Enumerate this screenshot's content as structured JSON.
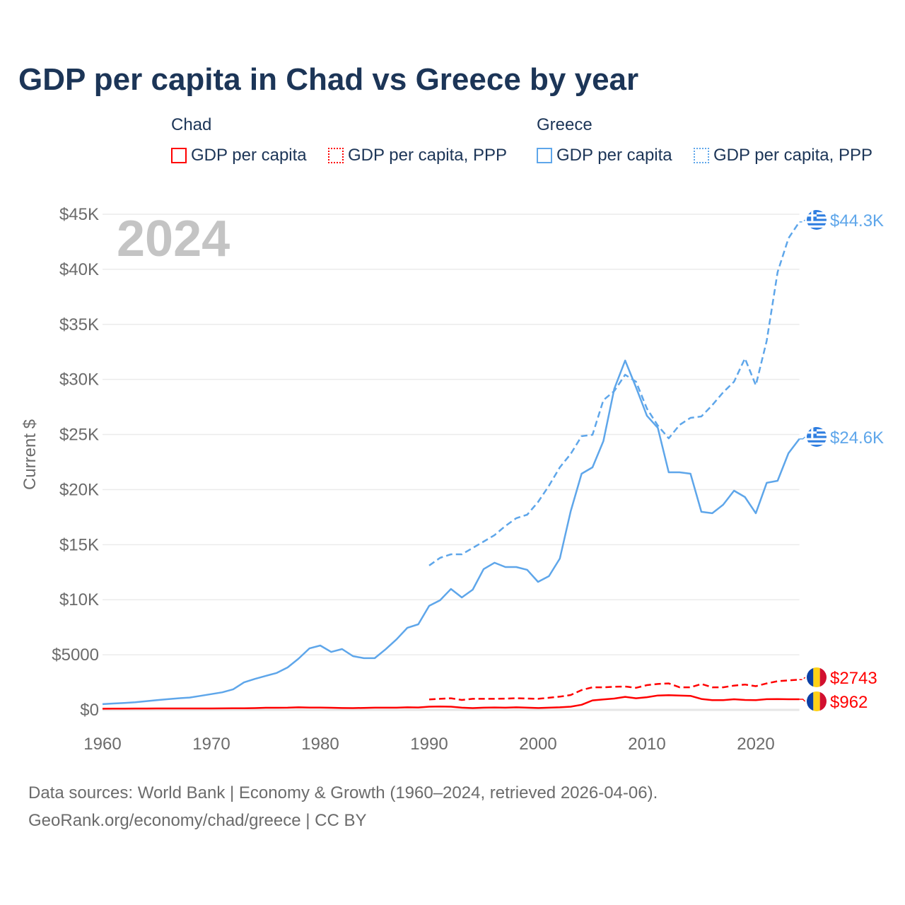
{
  "title": "GDP per capita in Chad vs Greece by year",
  "legend": {
    "groups": [
      {
        "name": "Chad",
        "items": [
          "GDP per capita",
          "GDP per capita, PPP"
        ],
        "color": "#ff0000"
      },
      {
        "name": "Greece",
        "items": [
          "GDP per capita",
          "GDP per capita, PPP"
        ],
        "color": "#5ea6ea"
      }
    ]
  },
  "year_overlay": "2024",
  "end_labels": {
    "greece_ppp": "$44.3K",
    "greece_gdp": "$24.6K",
    "chad_ppp": "$2743",
    "chad_gdp": "$962"
  },
  "footer": {
    "line1": "Data sources: World Bank | Economy & Growth (1960–2024, retrieved 2026-04-06).",
    "line2": "GeoRank.org/economy/chad/greece | CC BY"
  },
  "chart_data": {
    "type": "line",
    "title": "GDP per capita in Chad vs Greece by year",
    "xlabel": "",
    "ylabel": "Current $",
    "xlim": [
      1960,
      2024
    ],
    "ylim": [
      0,
      45000
    ],
    "grid": true,
    "legend_position": "top",
    "x_ticks": [
      1960,
      1970,
      1980,
      1990,
      2000,
      2010,
      2020
    ],
    "x_tick_labels": [
      "1960",
      "1970",
      "1980",
      "1990",
      "2000",
      "2010",
      "2020"
    ],
    "y_ticks": [
      0,
      5000,
      10000,
      15000,
      20000,
      25000,
      30000,
      35000,
      40000,
      45000
    ],
    "y_tick_labels": [
      "$0",
      "$5000",
      "$10K",
      "$15K",
      "$20K",
      "$25K",
      "$30K",
      "$35K",
      "$40K",
      "$45K"
    ],
    "series": [
      {
        "name": "Chad GDP per capita",
        "color": "#ff0000",
        "dash": false,
        "start": 1960,
        "values": [
          105,
          110,
          115,
          120,
          125,
          130,
          130,
          130,
          130,
          130,
          130,
          135,
          140,
          150,
          160,
          190,
          190,
          200,
          230,
          210,
          210,
          190,
          170,
          160,
          180,
          200,
          200,
          200,
          230,
          220,
          290,
          300,
          290,
          200,
          160,
          200,
          220,
          200,
          230,
          200,
          170,
          200,
          230,
          290,
          460,
          860,
          950,
          1030,
          1180,
          1050,
          1150,
          1300,
          1330,
          1300,
          1270,
          990,
          880,
          880,
          960,
          900,
          880,
          970,
          980,
          960,
          962
        ]
      },
      {
        "name": "Chad GDP per capita, PPP",
        "color": "#ff0000",
        "dash": true,
        "start": 1990,
        "values": [
          950,
          1000,
          1050,
          900,
          1000,
          1000,
          1000,
          1020,
          1050,
          1030,
          1000,
          1100,
          1200,
          1350,
          1800,
          2050,
          2050,
          2100,
          2120,
          2000,
          2250,
          2350,
          2400,
          2050,
          2050,
          2350,
          2050,
          2050,
          2200,
          2300,
          2150,
          2400,
          2600,
          2680,
          2743
        ]
      },
      {
        "name": "Greece GDP per capita",
        "color": "#5ea6ea",
        "dash": false,
        "start": 1960,
        "values": [
          520,
          580,
          620,
          690,
          780,
          880,
          970,
          1050,
          1120,
          1270,
          1430,
          1590,
          1870,
          2500,
          2810,
          3090,
          3350,
          3850,
          4650,
          5580,
          5840,
          5260,
          5520,
          4880,
          4690,
          4690,
          5500,
          6400,
          7450,
          7770,
          9440,
          9950,
          10980,
          10210,
          10910,
          12780,
          13360,
          12970,
          12970,
          12720,
          11620,
          12140,
          13740,
          18040,
          21440,
          22020,
          24400,
          29150,
          31720,
          29280,
          26700,
          25600,
          21570,
          21570,
          21440,
          17980,
          17850,
          18620,
          19900,
          19320,
          17850,
          20610,
          20800,
          23300,
          24600
        ]
      },
      {
        "name": "Greece GDP per capita, PPP",
        "color": "#5ea6ea",
        "dash": true,
        "start": 1990,
        "values": [
          13100,
          13800,
          14120,
          14120,
          14700,
          15280,
          15860,
          16700,
          17400,
          17720,
          18870,
          20350,
          22020,
          23240,
          24850,
          24970,
          28120,
          28950,
          30430,
          29790,
          27350,
          25810,
          24650,
          25870,
          26510,
          26640,
          27670,
          28830,
          29790,
          31910,
          29470,
          33510,
          39740,
          42820,
          44300
        ]
      }
    ]
  }
}
